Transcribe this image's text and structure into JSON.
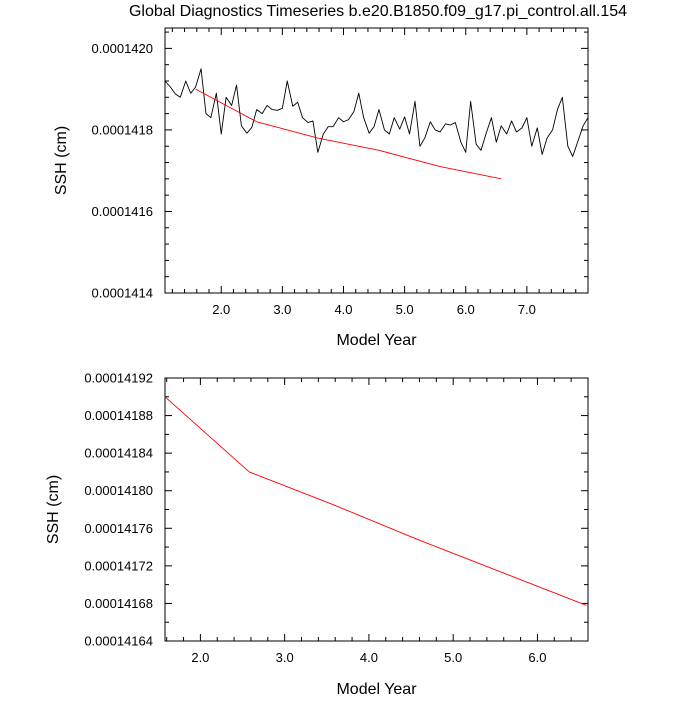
{
  "figure": {
    "title": "Global Diagnostics Timeseries b.e20.B1850.f09_g17.pi_control.all.154"
  },
  "chart_data": [
    {
      "type": "line",
      "title": "Global Diagnostics Timeseries b.e20.B1850.f09_g17.pi_control.all.154",
      "xlabel": "Model Year",
      "ylabel": "SSH (cm)",
      "xlim": [
        1.08,
        8.0
      ],
      "ylim": [
        0.0001414,
        0.00014205
      ],
      "xticks": [
        2.0,
        3.0,
        4.0,
        5.0,
        6.0,
        7.0
      ],
      "xtick_labels": [
        "2.0",
        "3.0",
        "4.0",
        "5.0",
        "6.0",
        "7.0"
      ],
      "yticks": [
        0.0001414,
        0.0001416,
        0.0001418,
        0.000142
      ],
      "ytick_labels": [
        "0.0001414",
        "0.0001416",
        "0.0001418",
        "0.0001420"
      ],
      "grid": false,
      "legend": "none",
      "series": [
        {
          "color": "#000000",
          "x": [
            1.08,
            1.17,
            1.25,
            1.33,
            1.42,
            1.5,
            1.58,
            1.67,
            1.75,
            1.83,
            1.92,
            2.0,
            2.08,
            2.17,
            2.25,
            2.33,
            2.42,
            2.5,
            2.58,
            2.67,
            2.75,
            2.83,
            2.92,
            3.0,
            3.08,
            3.17,
            3.25,
            3.33,
            3.42,
            3.5,
            3.58,
            3.67,
            3.75,
            3.83,
            3.92,
            4.0,
            4.08,
            4.17,
            4.25,
            4.33,
            4.42,
            4.5,
            4.58,
            4.67,
            4.75,
            4.83,
            4.92,
            5.0,
            5.08,
            5.17,
            5.25,
            5.33,
            5.42,
            5.5,
            5.58,
            5.67,
            5.75,
            5.83,
            5.92,
            6.0,
            6.08,
            6.17,
            6.25,
            6.33,
            6.42,
            6.5,
            6.58,
            6.67,
            6.75,
            6.83,
            6.92,
            7.0,
            7.08,
            7.17,
            7.25,
            7.33,
            7.42,
            7.5,
            7.58,
            7.67,
            7.75,
            7.83,
            7.92,
            8.0
          ],
          "values": [
            0.00014192,
            0.000141905,
            0.000141888,
            0.00014188,
            0.00014192,
            0.00014189,
            0.000141905,
            0.00014195,
            0.00014184,
            0.00014183,
            0.00014189,
            0.00014179,
            0.00014188,
            0.00014186,
            0.00014191,
            0.00014181,
            0.000141792,
            0.000141806,
            0.00014185,
            0.00014184,
            0.00014186,
            0.00014185,
            0.000141848,
            0.000141853,
            0.00014192,
            0.000141858,
            0.000141868,
            0.00014183,
            0.000141818,
            0.000141822,
            0.000141745,
            0.00014179,
            0.000141808,
            0.000141808,
            0.00014183,
            0.00014182,
            0.000141825,
            0.000141845,
            0.00014189,
            0.00014183,
            0.000141792,
            0.000141808,
            0.00014185,
            0.0001418,
            0.00014179,
            0.00014183,
            0.000141802,
            0.000141832,
            0.00014179,
            0.00014187,
            0.00014176,
            0.00014178,
            0.00014182,
            0.0001418,
            0.000141795,
            0.000141815,
            0.000141812,
            0.000141818,
            0.00014177,
            0.000141745,
            0.00014187,
            0.000141765,
            0.00014175,
            0.00014179,
            0.00014183,
            0.00014177,
            0.00014181,
            0.00014179,
            0.000141822,
            0.000141795,
            0.000141805,
            0.00014183,
            0.00014176,
            0.000141805,
            0.00014174,
            0.00014178,
            0.0001418,
            0.00014185,
            0.00014188,
            0.00014176,
            0.000141735,
            0.00014177,
            0.00014181,
            0.00014183
          ]
        },
        {
          "color": "#ff0000",
          "x": [
            1.58,
            2.58,
            3.58,
            4.58,
            5.58,
            6.58
          ],
          "values": [
            0.0001419,
            0.00014182,
            0.00014178,
            0.00014175,
            0.00014171,
            0.00014168
          ]
        }
      ]
    },
    {
      "type": "line",
      "xlabel": "Model Year",
      "ylabel": "SSH (cm)",
      "xlim": [
        1.58,
        6.6
      ],
      "ylim": [
        0.00014164,
        0.00014192
      ],
      "xticks": [
        2.0,
        3.0,
        4.0,
        5.0,
        6.0
      ],
      "xtick_labels": [
        "2.0",
        "3.0",
        "4.0",
        "5.0",
        "6.0"
      ],
      "yticks": [
        0.00014164,
        0.00014168,
        0.00014172,
        0.00014176,
        0.0001418,
        0.00014184,
        0.00014188,
        0.00014192
      ],
      "ytick_labels": [
        "0.00014164",
        "0.00014168",
        "0.00014172",
        "0.00014176",
        "0.00014180",
        "0.00014184",
        "0.00014188",
        "0.00014192"
      ],
      "grid": false,
      "legend": "none",
      "series": [
        {
          "color": "#ff0000",
          "x": [
            1.58,
            2.58,
            3.58,
            4.58,
            5.58,
            6.58
          ],
          "values": [
            0.0001419,
            0.00014182,
            0.000141785,
            0.000141748,
            0.000141713,
            0.000141678
          ]
        }
      ]
    }
  ]
}
